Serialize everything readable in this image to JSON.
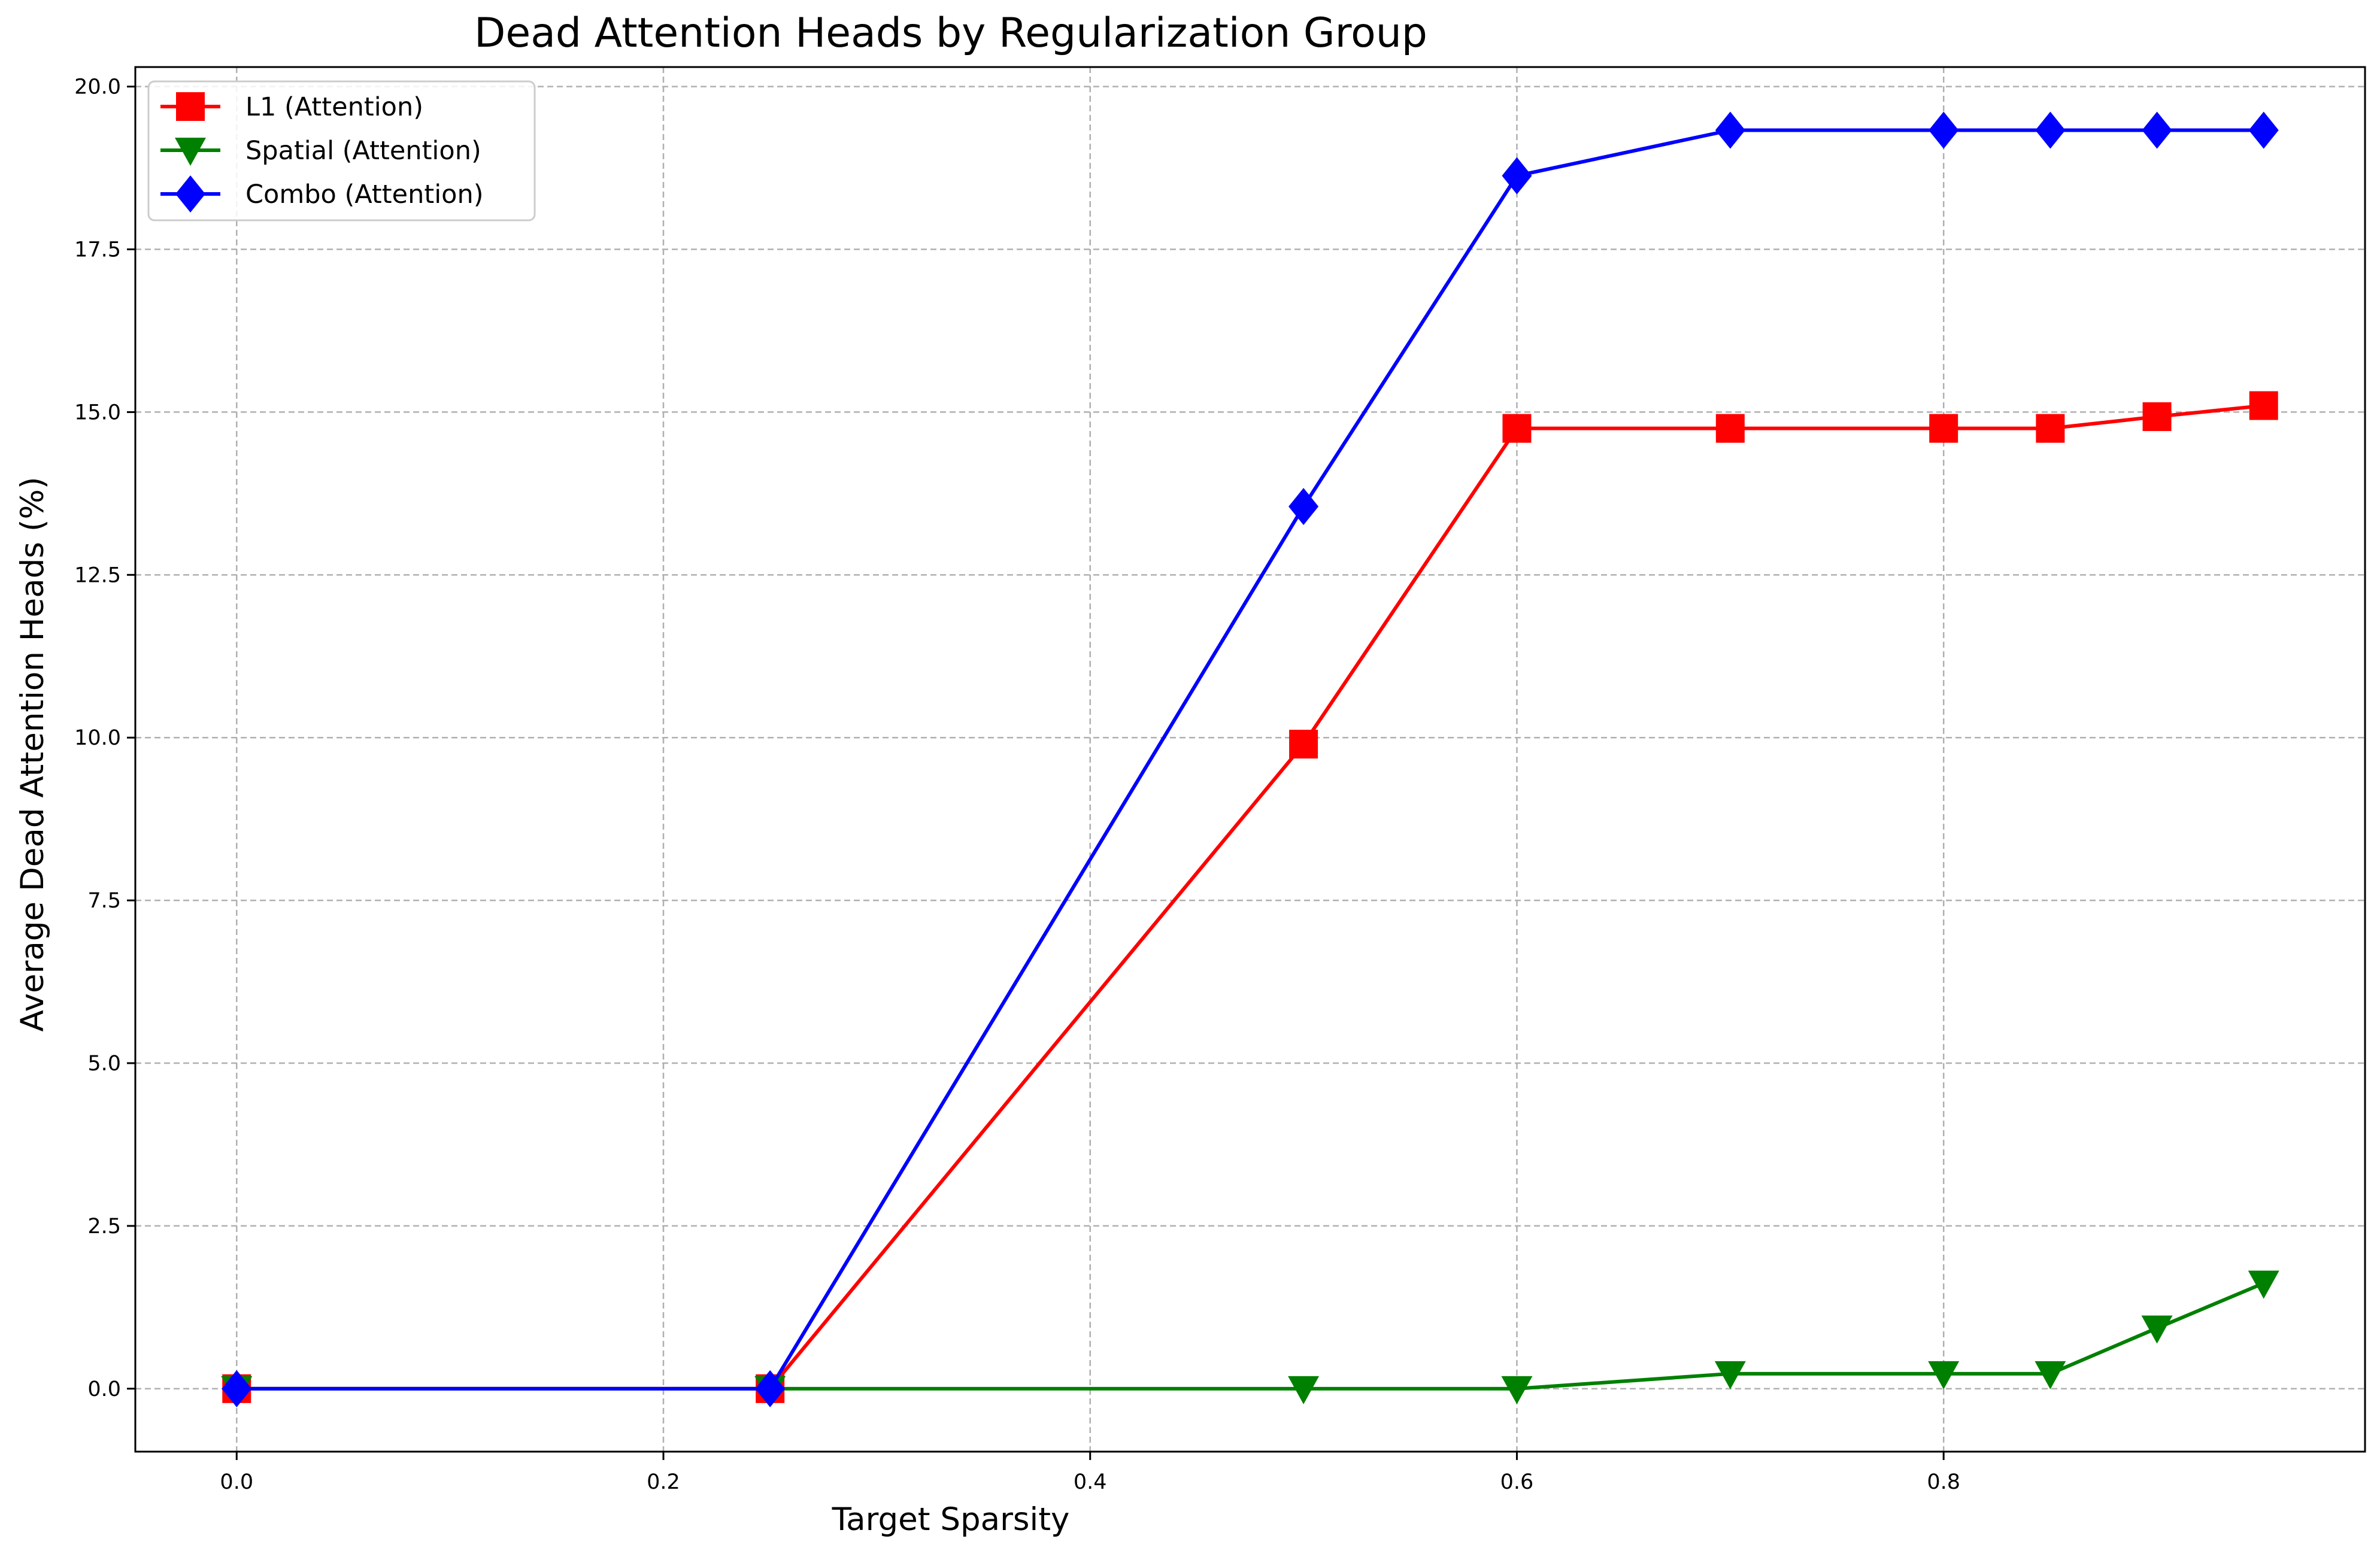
{
  "chart_data": {
    "type": "line",
    "title": "Dead Attention Heads by Regularization Group",
    "xlabel": "Target Sparsity",
    "ylabel": "Average Dead Attention Heads (%)",
    "xlim": [
      -0.0475,
      0.9975
    ],
    "ylim": [
      -0.967,
      20.3
    ],
    "x_ticks": [
      0.0,
      0.2,
      0.4,
      0.6,
      0.8
    ],
    "x_tick_labels": [
      "0.0",
      "0.2",
      "0.4",
      "0.6",
      "0.8"
    ],
    "y_ticks": [
      0.0,
      2.5,
      5.0,
      7.5,
      10.0,
      12.5,
      15.0,
      17.5,
      20.0
    ],
    "y_tick_labels": [
      "0.0",
      "2.5",
      "5.0",
      "7.5",
      "10.0",
      "12.5",
      "15.0",
      "17.5",
      "20.0"
    ],
    "grid": true,
    "legend_position": "top-left",
    "x": [
      0.0,
      0.25,
      0.5,
      0.6,
      0.7,
      0.8,
      0.85,
      0.9,
      0.95
    ],
    "series": [
      {
        "name": "L1 (Attention)",
        "color": "#ff0000",
        "marker": "square",
        "values": [
          0.0,
          0.0,
          9.9,
          14.75,
          14.75,
          14.75,
          14.75,
          14.93,
          15.1
        ]
      },
      {
        "name": "Spatial (Attention)",
        "color": "#008000",
        "marker": "triangle-down",
        "values": [
          0.0,
          0.0,
          0.0,
          0.0,
          0.23,
          0.23,
          0.23,
          0.93,
          1.62
        ]
      },
      {
        "name": "Combo (Attention)",
        "color": "#0000ff",
        "marker": "diamond",
        "values": [
          0.0,
          0.0,
          13.55,
          18.63,
          19.33,
          19.33,
          19.33,
          19.33,
          19.33
        ]
      }
    ]
  }
}
